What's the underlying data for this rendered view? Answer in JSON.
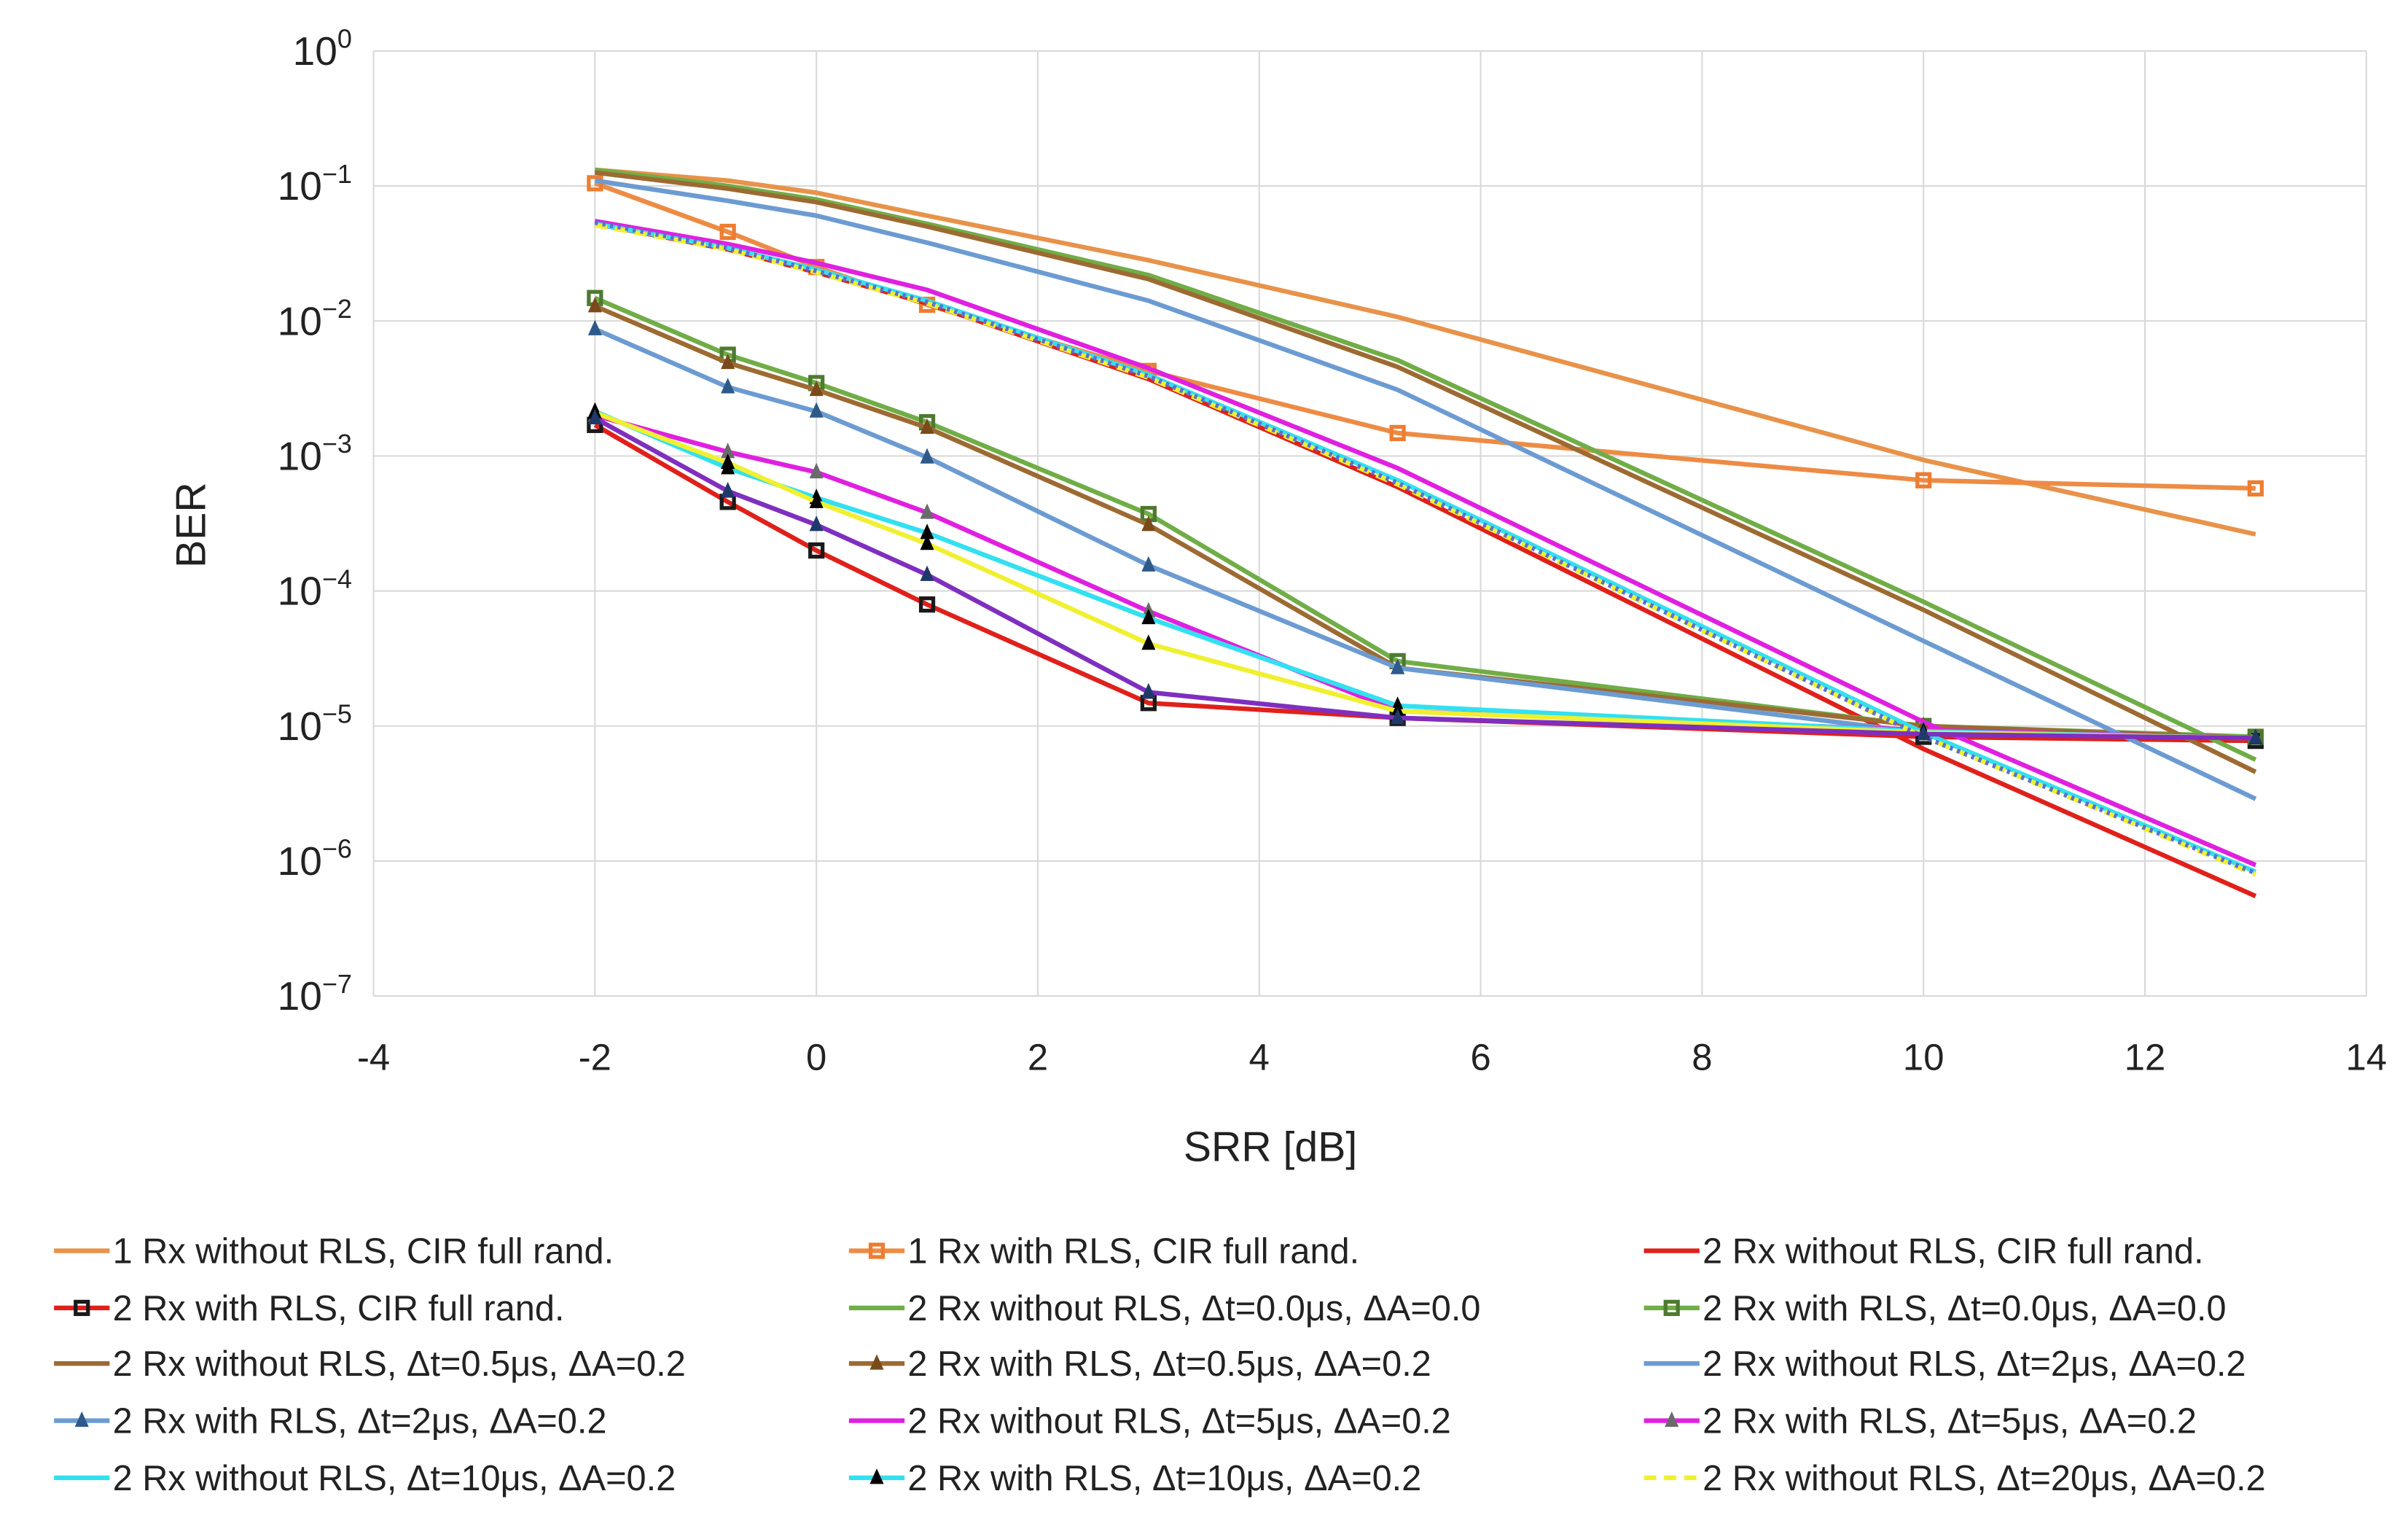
{
  "chart_data": {
    "type": "line",
    "title": "",
    "xlabel": "SRR [dB]",
    "ylabel": "BER",
    "xlim": [
      -4,
      14
    ],
    "xticks": [
      -4,
      -2,
      0,
      2,
      4,
      6,
      8,
      10,
      12,
      14
    ],
    "ylim_log10": [
      -7,
      0
    ],
    "ytick_base": "10",
    "ytick_exponents": [
      0,
      -1,
      -2,
      -3,
      -4,
      -5,
      -6,
      -7
    ],
    "yscale": "log",
    "grid": true,
    "legend_position": "bottom",
    "x": [
      -2,
      -0.8,
      0,
      1,
      3,
      5.25,
      10,
      13
    ],
    "series": [
      {
        "name": "1 Rx without RLS, CIR full rand.",
        "color": "#E8924A",
        "marker": "none",
        "dash": "solid",
        "log10_ber": [
          -0.88,
          -0.96,
          -1.05,
          -1.22,
          -1.55,
          -1.97,
          -3.03,
          -3.58
        ]
      },
      {
        "name": "1 Rx with RLS, CIR full rand.",
        "color": "#ED8B45",
        "marker": "square",
        "marker_color": "#ED7D31",
        "dash": "solid",
        "log10_ber": [
          -0.98,
          -1.34,
          -1.6,
          -1.88,
          -2.37,
          -2.83,
          -3.18,
          -3.24
        ]
      },
      {
        "name": "2 Rx without RLS, CIR full rand.",
        "color": "#E0201B",
        "marker": "none",
        "dash": "solid",
        "log10_ber": [
          -1.28,
          -1.47,
          -1.64,
          -1.87,
          -2.43,
          -3.23,
          -5.17,
          -6.26
        ]
      },
      {
        "name": "2 Rx with RLS, CIR full rand.",
        "color": "#E0201B",
        "marker": "square",
        "marker_color": "#1A1A1A",
        "dash": "solid",
        "log10_ber": [
          -2.77,
          -3.34,
          -3.7,
          -4.1,
          -4.83,
          -4.94,
          -5.08,
          -5.11
        ]
      },
      {
        "name": "2 Rx without RLS, Δt=0.0μs, ΔA=0.0",
        "color": "#70AD47",
        "marker": "none",
        "dash": "solid",
        "log10_ber": [
          -0.88,
          -1.0,
          -1.1,
          -1.28,
          -1.66,
          -2.29,
          -4.08,
          -5.25
        ]
      },
      {
        "name": "2 Rx with RLS, Δt=0.0μs, ΔA=0.0",
        "color": "#70AD47",
        "marker": "square",
        "marker_color": "#4E7A30",
        "dash": "solid",
        "log10_ber": [
          -1.83,
          -2.25,
          -2.46,
          -2.75,
          -3.43,
          -4.52,
          -5.0,
          -5.08
        ]
      },
      {
        "name": "2 Rx without RLS, Δt=0.5μs, ΔA=0.2",
        "color": "#9C6A32",
        "marker": "none",
        "dash": "solid",
        "log10_ber": [
          -0.9,
          -1.02,
          -1.12,
          -1.3,
          -1.69,
          -2.34,
          -4.14,
          -5.34
        ]
      },
      {
        "name": "2 Rx with RLS, Δt=0.5μs, ΔA=0.2",
        "color": "#9C6A32",
        "marker": "triangle",
        "marker_color": "#7A4A1A",
        "dash": "solid",
        "log10_ber": [
          -1.89,
          -2.31,
          -2.51,
          -2.79,
          -3.51,
          -4.57,
          -5.0,
          -5.09
        ]
      },
      {
        "name": "2 Rx without RLS, Δt=2μs, ΔA=0.2",
        "color": "#6C9BD2",
        "marker": "none",
        "dash": "solid",
        "log10_ber": [
          -0.96,
          -1.11,
          -1.22,
          -1.42,
          -1.85,
          -2.51,
          -4.37,
          -5.54
        ]
      },
      {
        "name": "2 Rx with RLS, Δt=2μs, ΔA=0.2",
        "color": "#6C9BD2",
        "marker": "triangle",
        "marker_color": "#2E5A8A",
        "dash": "solid",
        "log10_ber": [
          -2.06,
          -2.49,
          -2.67,
          -3.01,
          -3.81,
          -4.57,
          -5.05,
          -5.09
        ]
      },
      {
        "name": "2 Rx without RLS, Δt=5μs, ΔA=0.2",
        "color": "#E020E0",
        "marker": "none",
        "dash": "solid",
        "log10_ber": [
          -1.26,
          -1.43,
          -1.57,
          -1.77,
          -2.35,
          -3.09,
          -4.97,
          -6.03
        ]
      },
      {
        "name": "2 Rx with RLS, Δt=5μs, ΔA=0.2",
        "color": "#E020E0",
        "marker": "triangle",
        "marker_color": "#6A6A6A",
        "dash": "solid",
        "log10_ber": [
          -2.7,
          -2.97,
          -3.12,
          -3.42,
          -4.15,
          -4.89,
          -5.03,
          -5.09
        ]
      },
      {
        "name": "2 Rx without RLS, Δt=10μs, ΔA=0.2",
        "color": "#33E0F0",
        "marker": "none",
        "dash": "solid",
        "log10_ber": [
          -1.28,
          -1.46,
          -1.62,
          -1.85,
          -2.4,
          -3.18,
          -5.05,
          -6.08
        ]
      },
      {
        "name": "2 Rx with RLS, Δt=10μs, ΔA=0.2",
        "color": "#33E0F0",
        "marker": "triangle",
        "marker_color": "#000000",
        "dash": "solid",
        "log10_ber": [
          -2.67,
          -3.09,
          -3.31,
          -3.57,
          -4.2,
          -4.85,
          -5.04,
          -5.09
        ]
      },
      {
        "name": "2 Rx without RLS, Δt=20μs, ΔA=0.2",
        "color": "#F0F030",
        "marker": "none",
        "dash": "dashed",
        "log10_ber": [
          -1.29,
          -1.47,
          -1.64,
          -1.87,
          -2.42,
          -3.21,
          -5.08,
          -6.1
        ]
      },
      {
        "name": "",
        "color": "#F0F030",
        "marker": "triangle",
        "marker_color": "#000000",
        "dash": "solid",
        "log10_ber": [
          -2.68,
          -3.05,
          -3.34,
          -3.65,
          -4.39,
          -4.89,
          -5.05,
          -5.09
        ]
      },
      {
        "name": "",
        "color": "#5B6FD0",
        "marker": "none",
        "dash": "dotted",
        "log10_ber": [
          -1.27,
          -1.46,
          -1.63,
          -1.86,
          -2.41,
          -3.2,
          -5.08,
          -6.09
        ]
      },
      {
        "name": "",
        "color": "#7F2FBF",
        "marker": "triangle",
        "marker_color": "#1F3A6A",
        "dash": "solid",
        "log10_ber": [
          -2.72,
          -3.26,
          -3.51,
          -3.88,
          -4.75,
          -4.94,
          -5.06,
          -5.09
        ]
      }
    ]
  }
}
